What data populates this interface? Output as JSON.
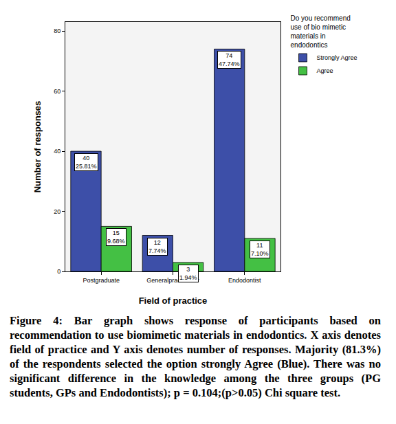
{
  "chart_data": {
    "type": "bar",
    "x_label": "Field of practice",
    "y_label": "Number of responses",
    "legend_title": "Do you recommend\nuse of bio mimetic\nmaterials in\nendodontics",
    "categories": [
      "Postgraduate",
      "Generalpractitioner",
      "Endodontist"
    ],
    "series": [
      {
        "name": "Strongly Agree",
        "color": "#3d4fa8",
        "values": [
          40,
          12,
          74
        ],
        "value_labels": [
          "40\n25.81%",
          "12\n7.74%",
          "74\n47.74%"
        ]
      },
      {
        "name": "Agree",
        "color": "#44c044",
        "values": [
          15,
          3,
          11
        ],
        "value_labels": [
          "15\n9.68%",
          "3\n1.94%",
          "11\n7.10%"
        ]
      }
    ],
    "ylim": [
      0,
      83
    ],
    "yticks": [
      0,
      20,
      40,
      60,
      80
    ],
    "grid": false,
    "legend": "upper right",
    "data_labels": true,
    "caption": "Figure 4: Bar graph shows response of participants based on recommendation to  use biomimetic materials in endodontics. X axis denotes field of practice and Y axis denotes number of responses. Majority (81.3%) of the respondents selected the option strongly Agree (Blue). There was no significant difference in the knowledge among the three groups (PG students, GPs and Endodontists); p = 0.104;(p>0.05) Chi square test."
  }
}
